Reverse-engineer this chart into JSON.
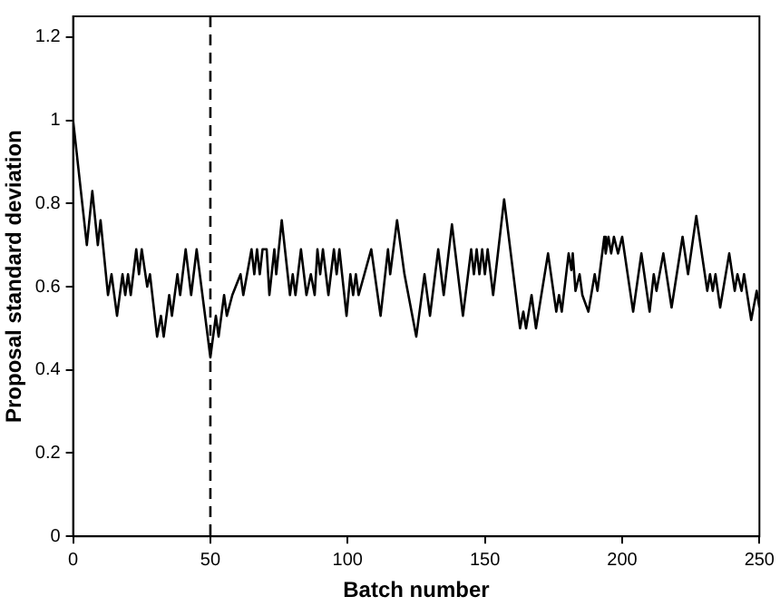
{
  "chart_data": {
    "type": "line",
    "xlabel": "Batch number",
    "ylabel": "Proposal standard deviation",
    "xlim": [
      0,
      250
    ],
    "xticks": [
      0,
      50,
      100,
      150,
      200,
      250
    ],
    "ylim": [
      0,
      1.25
    ],
    "yticks": [
      0,
      0.2,
      0.4,
      0.6,
      0.8,
      1,
      1.2
    ],
    "grid": false,
    "legend": false,
    "marker": "none",
    "line_style": "solid",
    "ref_lines": [
      {
        "axis": "x",
        "value": 50,
        "color": "#000000",
        "line_style": "dashed"
      }
    ],
    "series": [
      {
        "color": "#000000",
        "x": [
          0,
          5,
          7,
          9,
          10,
          12.7,
          14,
          16,
          18,
          19,
          20,
          21,
          23,
          24,
          25,
          27,
          28,
          30.6,
          32,
          33,
          35,
          36,
          38,
          39,
          41,
          43,
          45,
          50,
          52,
          53,
          55,
          56,
          58,
          61,
          62,
          65,
          66,
          67,
          68,
          69,
          70.5,
          71.5,
          73.3,
          74,
          76,
          79,
          80,
          81,
          83,
          85,
          86.6,
          88,
          89,
          90,
          91,
          93,
          95,
          96,
          97,
          99.6,
          101,
          102,
          103,
          104,
          108.6,
          112,
          114.7,
          115.5,
          118,
          120.7,
          125,
          128,
          130,
          133,
          135,
          138,
          142,
          145,
          146,
          147,
          148,
          149,
          150,
          151,
          153,
          157,
          162.8,
          164,
          165,
          167,
          168.6,
          173,
          176,
          177,
          178,
          180.5,
          181.5,
          182,
          183,
          184.5,
          185.5,
          187.7,
          190,
          191,
          193.5,
          194,
          195,
          196,
          197,
          198.5,
          200,
          204,
          207,
          210,
          211.5,
          212.5,
          215,
          218,
          222,
          224,
          227,
          231,
          232,
          233,
          234,
          235.7,
          239,
          241,
          242,
          243.5,
          244.4,
          247,
          249,
          250
        ],
        "values": [
          1.0,
          0.7,
          0.83,
          0.7,
          0.76,
          0.58,
          0.63,
          0.53,
          0.63,
          0.58,
          0.63,
          0.58,
          0.69,
          0.63,
          0.69,
          0.6,
          0.63,
          0.48,
          0.53,
          0.48,
          0.58,
          0.53,
          0.63,
          0.58,
          0.69,
          0.58,
          0.69,
          0.43,
          0.53,
          0.48,
          0.58,
          0.53,
          0.58,
          0.63,
          0.58,
          0.69,
          0.63,
          0.69,
          0.63,
          0.69,
          0.69,
          0.58,
          0.69,
          0.63,
          0.76,
          0.58,
          0.63,
          0.58,
          0.69,
          0.58,
          0.63,
          0.58,
          0.69,
          0.63,
          0.69,
          0.58,
          0.69,
          0.63,
          0.69,
          0.53,
          0.63,
          0.58,
          0.63,
          0.58,
          0.69,
          0.53,
          0.69,
          0.63,
          0.76,
          0.63,
          0.48,
          0.63,
          0.53,
          0.69,
          0.58,
          0.75,
          0.53,
          0.69,
          0.63,
          0.69,
          0.63,
          0.69,
          0.63,
          0.69,
          0.58,
          0.81,
          0.5,
          0.54,
          0.5,
          0.58,
          0.5,
          0.68,
          0.54,
          0.58,
          0.54,
          0.68,
          0.64,
          0.68,
          0.59,
          0.63,
          0.58,
          0.54,
          0.63,
          0.59,
          0.72,
          0.68,
          0.72,
          0.68,
          0.72,
          0.68,
          0.72,
          0.54,
          0.68,
          0.54,
          0.63,
          0.59,
          0.68,
          0.55,
          0.72,
          0.63,
          0.77,
          0.59,
          0.63,
          0.59,
          0.63,
          0.55,
          0.68,
          0.59,
          0.63,
          0.59,
          0.63,
          0.52,
          0.59,
          0.55
        ]
      }
    ]
  }
}
